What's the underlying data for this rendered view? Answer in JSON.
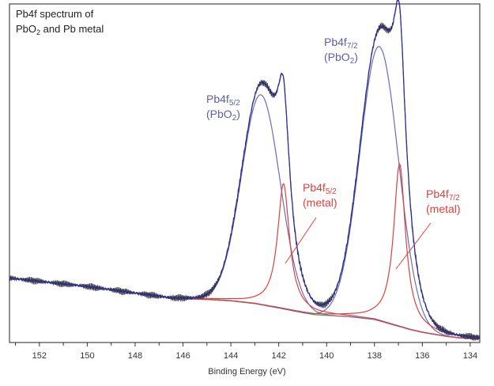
{
  "chart_data": {
    "type": "line",
    "title": {
      "line1": "Pb4f spectrum of",
      "line2_pre": "PbO",
      "line2_sub": "2",
      "line2_post": " and Pb metal"
    },
    "xlabel": "Binding Energy (eV)",
    "ylabel": "",
    "xlim": [
      153.25,
      133.6
    ],
    "x_reversed": true,
    "ylim": [
      0,
      100
    ],
    "y_ticks_shown": false,
    "grid": false,
    "x_ticks": [
      152,
      150,
      148,
      146,
      144,
      142,
      140,
      138,
      136,
      134
    ],
    "background": {
      "color": "#3cb43c",
      "x": [
        153.25,
        150,
        148,
        146.5,
        145,
        144,
        143,
        142,
        141,
        140.5,
        139.5,
        139,
        138,
        137.5,
        137,
        136.5,
        136,
        135,
        134.5,
        133.6
      ],
      "y": [
        19,
        16.5,
        14.5,
        13,
        12.7,
        12.3,
        11.5,
        10.2,
        8.8,
        8.2,
        7.8,
        7.6,
        6.8,
        5.8,
        4.8,
        3.8,
        3.0,
        1.8,
        1.4,
        1.0
      ]
    },
    "components": [
      {
        "name_main": "Pb4f",
        "name_sub": "5/2",
        "name_line2_pre": "(PbO",
        "name_line2_sub": "2",
        "name_line2_post": ")",
        "center": 142.75,
        "height": 62,
        "fwhm": 1.9,
        "shape": "gaussian",
        "color": "#6a6cc0"
      },
      {
        "name_main": "Pb4f",
        "name_sub": "7/2",
        "name_line2_pre": "(PbO",
        "name_line2_sub": "2",
        "name_line2_post": ")",
        "center": 137.8,
        "height": 81,
        "fwhm": 1.9,
        "shape": "gaussian",
        "color": "#6a6cc0"
      },
      {
        "name_main": "Pb4f",
        "name_sub": "5/2",
        "name_line2_pre": "(metal)",
        "name_line2_sub": "",
        "name_line2_post": "",
        "center": 141.8,
        "height": 37,
        "fwhm": 0.6,
        "shape": "lorentzian",
        "color": "#e0403a"
      },
      {
        "name_main": "Pb4f",
        "name_sub": "7/2",
        "name_line2_pre": "(metal)",
        "name_line2_sub": "",
        "name_line2_post": "",
        "center": 136.95,
        "height": 48,
        "fwhm": 0.6,
        "shape": "lorentzian",
        "color": "#e0403a"
      }
    ],
    "envelope_color": "#2e3192",
    "measured_color": "#333333"
  }
}
